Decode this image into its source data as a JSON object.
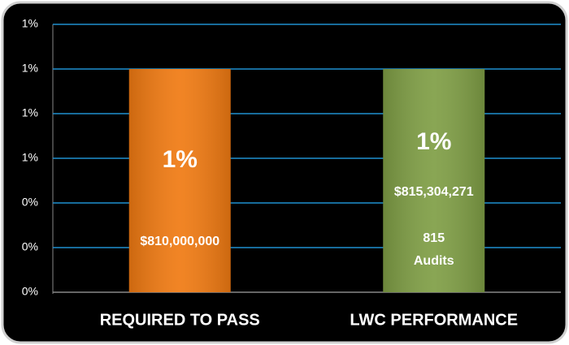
{
  "chart_data": {
    "type": "bar",
    "categories": [
      "REQUIRED TO PASS",
      "LWC PERFORMANCE"
    ],
    "values": [
      1,
      1
    ],
    "value_labels": [
      "1%",
      "1%"
    ],
    "colors": [
      "#f07a12",
      "#7f9e45"
    ],
    "bar_notes": [
      [
        "$810,000,000"
      ],
      [
        "$815,304,271",
        "815",
        "Audits"
      ]
    ],
    "ylim": [
      0,
      1.2
    ],
    "yticks": [
      {
        "value": 0,
        "label": "0%"
      },
      {
        "value": 0.2,
        "label": "0%"
      },
      {
        "value": 0.4,
        "label": "0%"
      },
      {
        "value": 0.6,
        "label": "1%"
      },
      {
        "value": 0.8,
        "label": "1%"
      },
      {
        "value": 1,
        "label": "1%"
      },
      {
        "value": 1.2,
        "label": "1%"
      }
    ],
    "grid": true
  }
}
